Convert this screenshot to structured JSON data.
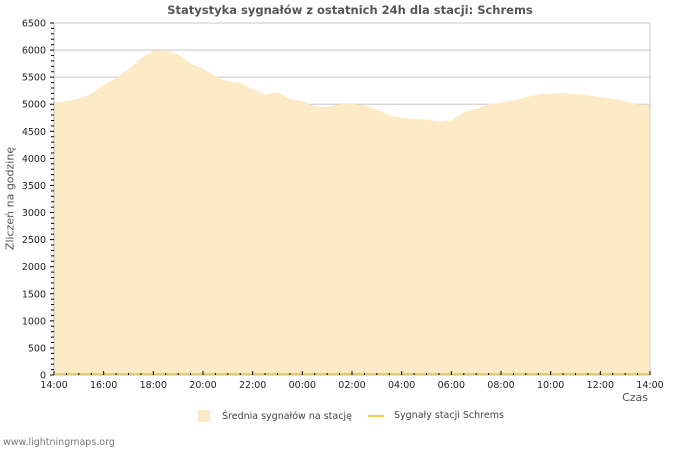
{
  "title": "Statystyka sygnałów z ostatnich 24h dla stacji: Schrems",
  "footer": "www.lightningmaps.org",
  "colors": {
    "area_fill": "#fdebc8",
    "station_line": "#f5cf50",
    "grid": "#c8c8c8",
    "axis_text": "#222222"
  },
  "legend": {
    "average": "Średnia sygnałów na stację",
    "station": "Sygnały stacji Schrems"
  },
  "chart_data": {
    "type": "area",
    "title": "Statystyka sygnałów z ostatnich 24h dla stacji: Schrems",
    "xlabel": "Czas",
    "ylabel": "Zliczeń na godzinę",
    "ylim": [
      0,
      6500
    ],
    "yticks": [
      0,
      500,
      1000,
      1500,
      2000,
      2500,
      3000,
      3500,
      4000,
      4500,
      5000,
      5500,
      6000,
      6500
    ],
    "xticks": [
      "14:00",
      "16:00",
      "18:00",
      "20:00",
      "22:00",
      "00:00",
      "02:00",
      "04:00",
      "06:00",
      "08:00",
      "10:00",
      "12:00",
      "14:00"
    ],
    "grid": true,
    "legend_position": "bottom",
    "x": [
      "14:00",
      "14:30",
      "15:00",
      "15:30",
      "16:00",
      "16:30",
      "17:00",
      "17:30",
      "18:00",
      "18:30",
      "19:00",
      "19:30",
      "20:00",
      "20:30",
      "21:00",
      "21:30",
      "22:00",
      "22:30",
      "23:00",
      "23:30",
      "00:00",
      "00:30",
      "01:00",
      "01:30",
      "02:00",
      "02:30",
      "03:00",
      "03:30",
      "04:00",
      "04:30",
      "05:00",
      "05:30",
      "06:00",
      "06:30",
      "07:00",
      "07:30",
      "08:00",
      "08:30",
      "09:00",
      "09:30",
      "10:00",
      "10:30",
      "11:00",
      "11:30",
      "12:00",
      "12:30",
      "13:00",
      "13:30",
      "14:00"
    ],
    "series": [
      {
        "name": "Średnia sygnałów na stację",
        "style": "area",
        "values": [
          5040,
          5060,
          5100,
          5200,
          5360,
          5480,
          5650,
          5850,
          5990,
          5990,
          5920,
          5750,
          5660,
          5520,
          5420,
          5400,
          5280,
          5180,
          5220,
          5100,
          5060,
          4960,
          4950,
          5000,
          5010,
          4980,
          4900,
          4800,
          4750,
          4730,
          4720,
          4680,
          4700,
          4850,
          4920,
          5000,
          5030,
          5070,
          5130,
          5180,
          5200,
          5210,
          5190,
          5170,
          5130,
          5100,
          5060,
          5000,
          4980
        ]
      },
      {
        "name": "Sygnały stacji Schrems",
        "style": "line",
        "values": [
          0,
          0,
          0,
          0,
          0,
          0,
          0,
          0,
          0,
          0,
          0,
          0,
          0,
          0,
          0,
          0,
          0,
          0,
          0,
          0,
          0,
          0,
          0,
          0,
          0,
          0,
          0,
          0,
          0,
          0,
          0,
          0,
          0,
          0,
          0,
          0,
          0,
          0,
          0,
          0,
          0,
          0,
          0,
          0,
          0,
          0,
          0,
          0,
          0
        ]
      }
    ]
  }
}
